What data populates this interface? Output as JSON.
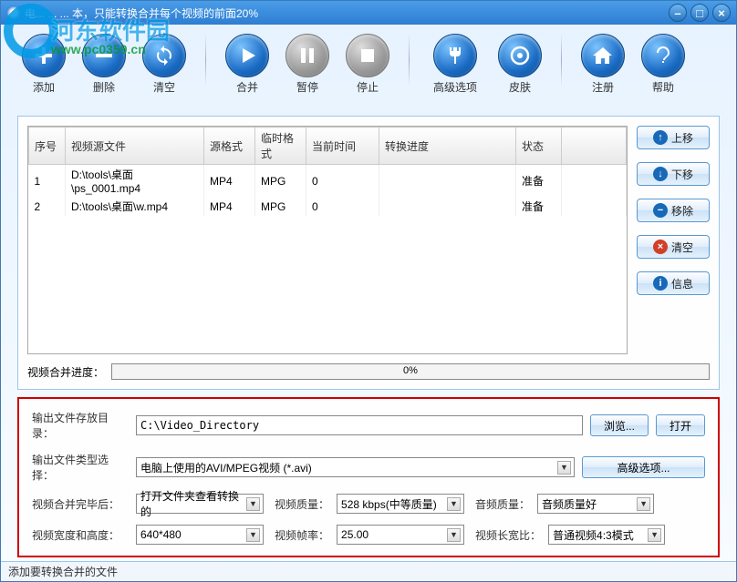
{
  "title": "电... ... ... 本，只能转换合并每个视频的前面20%",
  "watermark": {
    "text": "河东软件园",
    "url": "www.pc0359.cn"
  },
  "toolbar": [
    {
      "name": "add-button",
      "label": "添加",
      "icon": "plus",
      "enabled": true
    },
    {
      "name": "delete-button",
      "label": "删除",
      "icon": "minus",
      "enabled": true
    },
    {
      "name": "clear-button",
      "label": "清空",
      "icon": "refresh",
      "enabled": true
    },
    {
      "sep": true
    },
    {
      "name": "merge-button",
      "label": "合并",
      "icon": "play",
      "enabled": true
    },
    {
      "name": "pause-button",
      "label": "暂停",
      "icon": "pause",
      "enabled": false
    },
    {
      "name": "stop-button",
      "label": "停止",
      "icon": "stop",
      "enabled": false
    },
    {
      "sep": true
    },
    {
      "name": "advanced-button",
      "label": "高级选项",
      "icon": "tools",
      "enabled": true,
      "wide": true
    },
    {
      "name": "skin-button",
      "label": "皮肤",
      "icon": "skin",
      "enabled": true
    },
    {
      "sep": true
    },
    {
      "name": "register-button",
      "label": "注册",
      "icon": "home",
      "enabled": true
    },
    {
      "name": "help-button",
      "label": "帮助",
      "icon": "help",
      "enabled": true
    }
  ],
  "table": {
    "columns": [
      "序号",
      "视频源文件",
      "源格式",
      "临时格式",
      "当前时间",
      "转换进度",
      "状态"
    ],
    "rows": [
      {
        "seq": "1",
        "source": "D:\\tools\\桌面\\ps_0001.mp4",
        "srcfmt": "MP4",
        "tmpfmt": "MPG",
        "time": "0",
        "progress": "",
        "status": "准备"
      },
      {
        "seq": "2",
        "source": "D:\\tools\\桌面\\w.mp4",
        "srcfmt": "MP4",
        "tmpfmt": "MPG",
        "time": "0",
        "progress": "",
        "status": "准备"
      }
    ]
  },
  "side_buttons": [
    {
      "name": "move-up-button",
      "label": "上移",
      "icon": "↑",
      "cls": "si-blue"
    },
    {
      "name": "move-down-button",
      "label": "下移",
      "icon": "↓",
      "cls": "si-blue"
    },
    {
      "name": "remove-button",
      "label": "移除",
      "icon": "−",
      "cls": "si-blue"
    },
    {
      "name": "clear-list-button",
      "label": "清空",
      "icon": "×",
      "cls": "si-red"
    },
    {
      "name": "info-button",
      "label": "信息",
      "icon": "i",
      "cls": "si-blue"
    }
  ],
  "merge_progress": {
    "label": "视频合并进度：",
    "value": "0%"
  },
  "output": {
    "dir_label": "输出文件存放目录：",
    "dir_value": "C:\\Video_Directory",
    "browse": "浏览...",
    "open": "打开",
    "type_label": "输出文件类型选择：",
    "type_value": "电脑上使用的AVI/MPEG视频  (*.avi)",
    "adv_opts": "高级选项...",
    "after_label": "视频合并完毕后：",
    "after_value": "打开文件夹查看转换的",
    "vquality_label": "视频质量：",
    "vquality_value": "528 kbps(中等质量)",
    "aquality_label": "音频质量：",
    "aquality_value": "音频质量好",
    "size_label": "视频宽度和高度：",
    "size_value": "640*480",
    "fps_label": "视频帧率：",
    "fps_value": "25.00",
    "aspect_label": "视频长宽比：",
    "aspect_value": "普通视频4:3模式"
  },
  "statusbar": "添加要转换合并的文件"
}
